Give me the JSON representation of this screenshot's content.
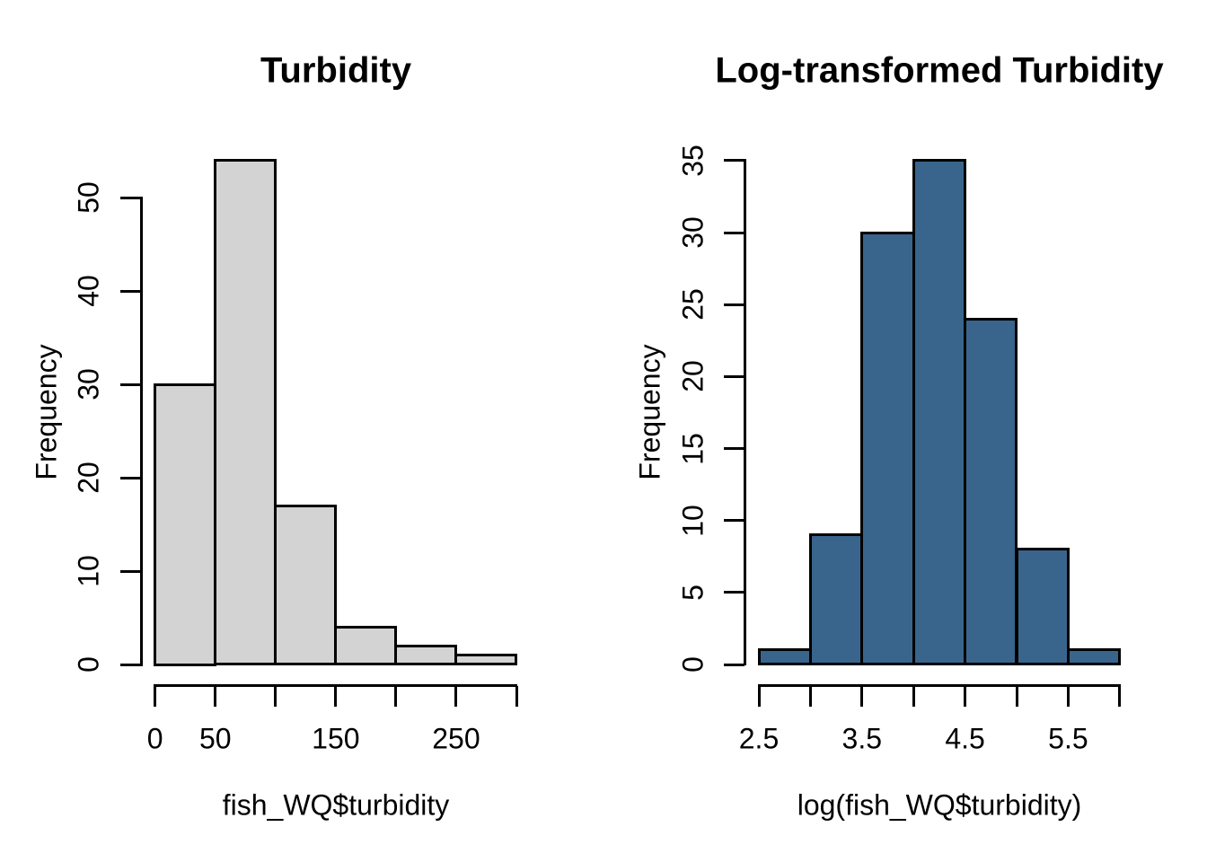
{
  "figure": {
    "background": "#ffffff",
    "text_color": "#000000",
    "axis_color": "#000000"
  },
  "chart_data": [
    {
      "id": "turbidity-histogram",
      "type": "bar",
      "subtype": "histogram",
      "title": "Turbidity",
      "xlabel": "fish_WQ$turbidity",
      "ylabel": "Frequency",
      "bin_breaks": [
        0,
        50,
        100,
        150,
        200,
        250,
        300
      ],
      "categories": [
        "0-50",
        "50-100",
        "100-150",
        "150-200",
        "200-250",
        "250-300"
      ],
      "values": [
        30,
        54,
        17,
        4,
        2,
        1
      ],
      "xlim": [
        0,
        300
      ],
      "ylim": [
        0,
        50
      ],
      "x_ticks": [
        0,
        50,
        100,
        150,
        200,
        250,
        300
      ],
      "x_tick_labels": [
        "0",
        "50",
        "",
        "150",
        "",
        "250",
        ""
      ],
      "y_ticks": [
        0,
        10,
        20,
        30,
        40,
        50
      ],
      "y_tick_labels": [
        "0",
        "10",
        "20",
        "30",
        "40",
        "50"
      ],
      "bar_fill": "#d3d3d3",
      "bar_border": "#000000",
      "grid": false,
      "legend": null
    },
    {
      "id": "log-turbidity-histogram",
      "type": "bar",
      "subtype": "histogram",
      "title": "Log-transformed Turbidity",
      "xlabel": "log(fish_WQ$turbidity)",
      "ylabel": "Frequency",
      "bin_breaks": [
        2.5,
        3.0,
        3.5,
        4.0,
        4.5,
        5.0,
        5.5,
        6.0
      ],
      "categories": [
        "2.5-3.0",
        "3.0-3.5",
        "3.5-4.0",
        "4.0-4.5",
        "4.5-5.0",
        "5.0-5.5",
        "5.5-6.0"
      ],
      "values": [
        1,
        9,
        30,
        35,
        24,
        8,
        1
      ],
      "xlim": [
        2.5,
        6.0
      ],
      "ylim": [
        0,
        35
      ],
      "x_ticks": [
        2.5,
        3.0,
        3.5,
        4.0,
        4.5,
        5.0,
        5.5,
        6.0
      ],
      "x_tick_labels": [
        "2.5",
        "",
        "3.5",
        "",
        "4.5",
        "",
        "5.5",
        ""
      ],
      "y_ticks": [
        0,
        5,
        10,
        15,
        20,
        25,
        30,
        35
      ],
      "y_tick_labels": [
        "0",
        "5",
        "10",
        "15",
        "20",
        "25",
        "30",
        "35"
      ],
      "bar_fill": "#39658c",
      "bar_border": "#000000",
      "grid": false,
      "legend": null
    }
  ]
}
